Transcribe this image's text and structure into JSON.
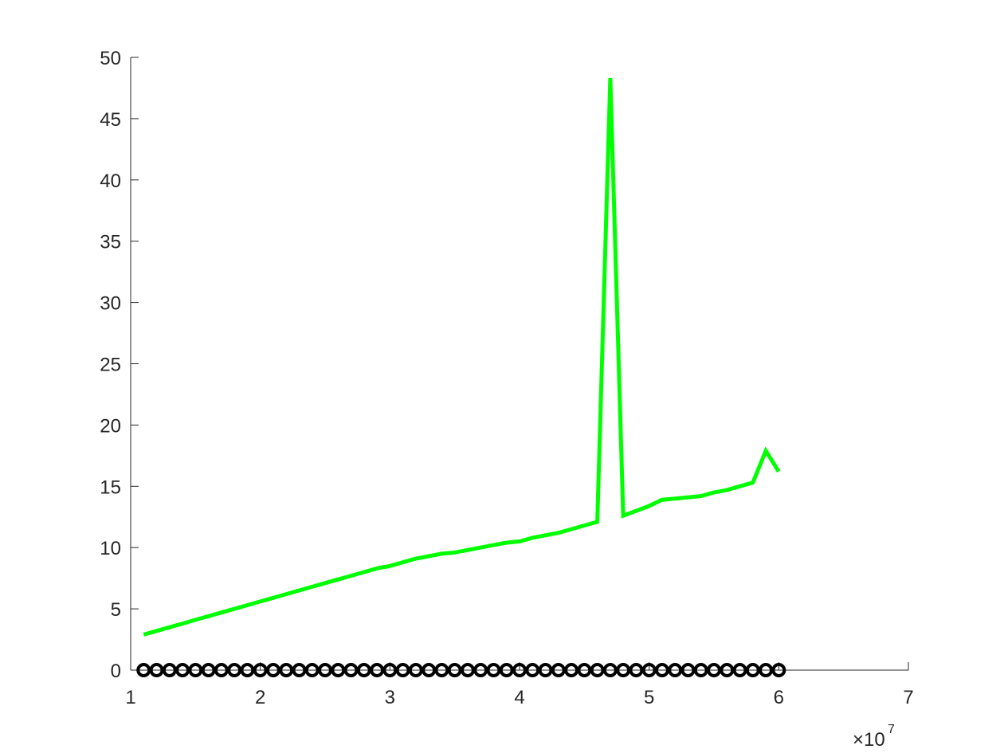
{
  "chart_data": {
    "type": "line",
    "title": "",
    "xlabel": "",
    "ylabel": "",
    "xlim": [
      10000000,
      70000000
    ],
    "ylim": [
      0,
      50
    ],
    "x_ticks": [
      10000000,
      20000000,
      30000000,
      40000000,
      50000000,
      60000000,
      70000000
    ],
    "x_tick_labels": [
      "1",
      "2",
      "3",
      "4",
      "5",
      "6",
      "7"
    ],
    "y_ticks": [
      0,
      5,
      10,
      15,
      20,
      25,
      30,
      35,
      40,
      45,
      50
    ],
    "y_tick_labels": [
      "0",
      "5",
      "10",
      "15",
      "20",
      "25",
      "30",
      "35",
      "40",
      "45",
      "50"
    ],
    "x_exponent_label": {
      "base": "×10",
      "power": "7"
    },
    "grid": false,
    "x": [
      11000000,
      12000000,
      13000000,
      14000000,
      15000000,
      16000000,
      17000000,
      18000000,
      19000000,
      20000000,
      21000000,
      22000000,
      23000000,
      24000000,
      25000000,
      26000000,
      27000000,
      28000000,
      29000000,
      30000000,
      31000000,
      32000000,
      33000000,
      34000000,
      35000000,
      36000000,
      37000000,
      38000000,
      39000000,
      40000000,
      41000000,
      42000000,
      43000000,
      44000000,
      45000000,
      46000000,
      47000000,
      48000000,
      49000000,
      50000000,
      51000000,
      52000000,
      53000000,
      54000000,
      55000000,
      56000000,
      57000000,
      58000000,
      59000000,
      60000000
    ],
    "series": [
      {
        "style": "line",
        "color": "#00ff00",
        "values": [
          2.9,
          3.2,
          3.5,
          3.8,
          4.1,
          4.4,
          4.7,
          5.0,
          5.3,
          5.6,
          5.9,
          6.2,
          6.5,
          6.8,
          7.1,
          7.4,
          7.7,
          8.0,
          8.3,
          8.5,
          8.8,
          9.1,
          9.3,
          9.5,
          9.6,
          9.8,
          10.0,
          10.2,
          10.4,
          10.5,
          10.8,
          11.0,
          11.2,
          11.5,
          11.8,
          12.1,
          48.3,
          12.6,
          13.0,
          13.4,
          13.9,
          14.0,
          14.1,
          14.2,
          14.5,
          14.7,
          15.0,
          15.3,
          17.9,
          16.2
        ]
      },
      {
        "style": "markers",
        "marker": "circle",
        "color": "#000000",
        "values": [
          0,
          0,
          0,
          0,
          0,
          0,
          0,
          0,
          0,
          0,
          0,
          0,
          0,
          0,
          0,
          0,
          0,
          0,
          0,
          0,
          0,
          0,
          0,
          0,
          0,
          0,
          0,
          0,
          0,
          0,
          0,
          0,
          0,
          0,
          0,
          0,
          0,
          0,
          0,
          0,
          0,
          0,
          0,
          0,
          0,
          0,
          0,
          0,
          0,
          0
        ]
      }
    ]
  }
}
